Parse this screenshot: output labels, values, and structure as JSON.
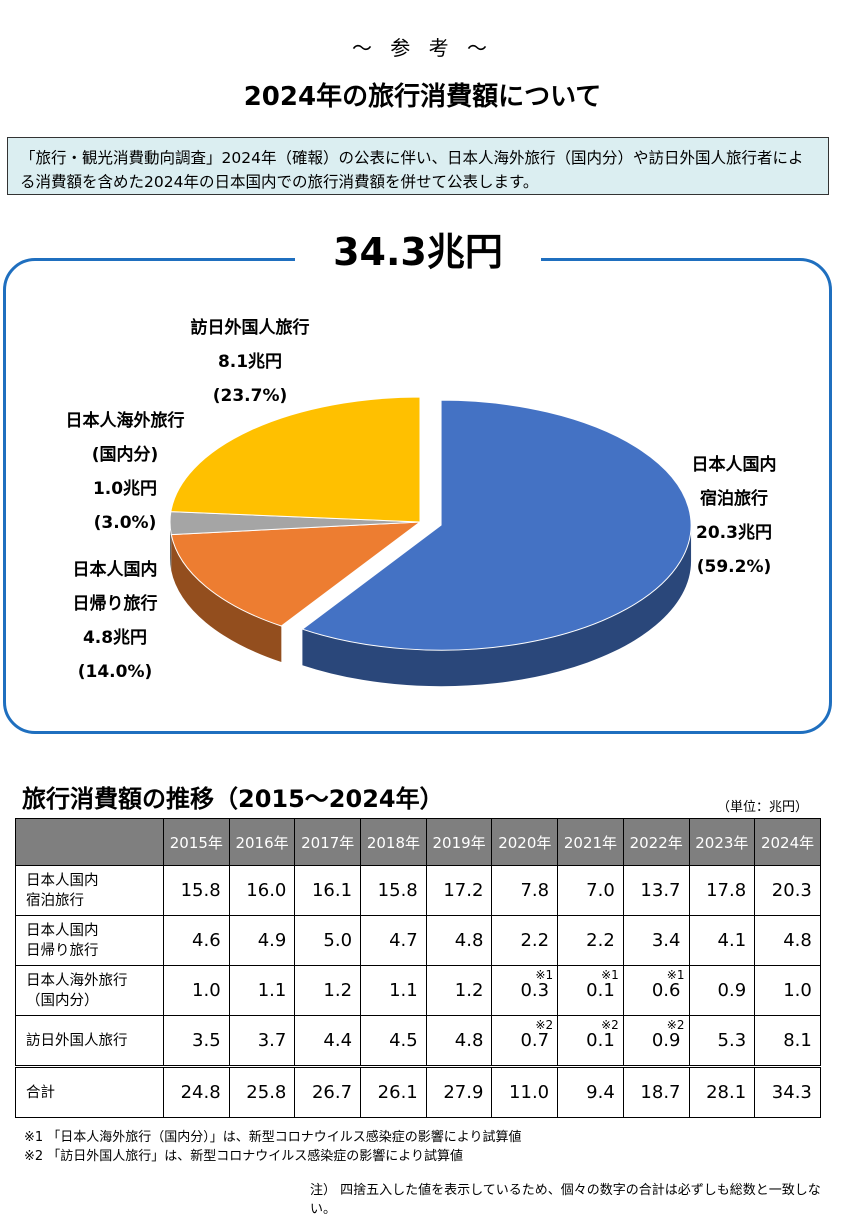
{
  "heading": {
    "reference": "～ 参 考 ～",
    "title": "2024年の旅行消費額について"
  },
  "intro": "「旅行・観光消費動向調査」2024年（確報）の公表に伴い、日本人海外旅行（国内分）や訪日外国人旅行者による消費額を含めた2024年の日本国内での旅行消費額を併せて公表します。",
  "pie": {
    "total": "34.3兆円",
    "segments": [
      {
        "name_line1": "日本人国内",
        "name_line2": "宿泊旅行",
        "amount": "20.3兆円",
        "share": "(59.2%)",
        "value": 20.3,
        "color": "#4472c4"
      },
      {
        "name_line1": "日本人国内",
        "name_line2": "日帰り旅行",
        "amount": "4.8兆円",
        "share": "(14.0%)",
        "value": 4.8,
        "color": "#ed7d31"
      },
      {
        "name_line1": "日本人海外旅行",
        "name_line2": "(国内分)",
        "amount": "1.0兆円",
        "share": "(3.0%)",
        "value": 1.0,
        "color": "#a5a5a5"
      },
      {
        "name_line1": "訪日外国人旅行",
        "name_line2": "",
        "amount": "8.1兆円",
        "share": "(23.7%)",
        "value": 8.1,
        "color": "#ffc000"
      }
    ]
  },
  "table": {
    "title": "旅行消費額の推移（2015～2024年）",
    "unit": "（単位：兆円）",
    "years": [
      "2015年",
      "2016年",
      "2017年",
      "2018年",
      "2019年",
      "2020年",
      "2021年",
      "2022年",
      "2023年",
      "2024年"
    ],
    "rows": [
      {
        "label_1": "日本人国内",
        "label_2": "宿泊旅行",
        "values": [
          "15.8",
          "16.0",
          "16.1",
          "15.8",
          "17.2",
          "7.8",
          "7.0",
          "13.7",
          "17.8",
          "20.3"
        ],
        "marks": [
          "",
          "",
          "",
          "",
          "",
          "",
          "",
          "",
          "",
          ""
        ]
      },
      {
        "label_1": "日本人国内",
        "label_2": "日帰り旅行",
        "values": [
          "4.6",
          "4.9",
          "5.0",
          "4.7",
          "4.8",
          "2.2",
          "2.2",
          "3.4",
          "4.1",
          "4.8"
        ],
        "marks": [
          "",
          "",
          "",
          "",
          "",
          "",
          "",
          "",
          "",
          ""
        ]
      },
      {
        "label_1": "日本人海外旅行",
        "label_2": "（国内分）",
        "values": [
          "1.0",
          "1.1",
          "1.2",
          "1.1",
          "1.2",
          "0.3",
          "0.1",
          "0.6",
          "0.9",
          "1.0"
        ],
        "marks": [
          "",
          "",
          "",
          "",
          "",
          "※1",
          "※1",
          "※1",
          "",
          ""
        ]
      },
      {
        "label_1": "訪日外国人旅行",
        "label_2": "",
        "values": [
          "3.5",
          "3.7",
          "4.4",
          "4.5",
          "4.8",
          "0.7",
          "0.1",
          "0.9",
          "5.3",
          "8.1"
        ],
        "marks": [
          "",
          "",
          "",
          "",
          "",
          "※2",
          "※2",
          "※2",
          "",
          ""
        ]
      },
      {
        "label_1": "合計",
        "label_2": "",
        "values": [
          "24.8",
          "25.8",
          "26.7",
          "26.1",
          "27.9",
          "11.0",
          "9.4",
          "18.7",
          "28.1",
          "34.3"
        ],
        "marks": [
          "",
          "",
          "",
          "",
          "",
          "",
          "",
          "",
          "",
          ""
        ]
      }
    ]
  },
  "footnotes": {
    "note1": "※1 「日本人海外旅行（国内分）」は、新型コロナウイルス感染症の影響により試算値",
    "note2": "※2 「訪日外国人旅行」は、新型コロナウイルス感染症の影響により試算値",
    "note3": "注） 四捨五入した値を表示しているため、個々の数字の合計は必ずしも総数と一致しない。"
  }
}
